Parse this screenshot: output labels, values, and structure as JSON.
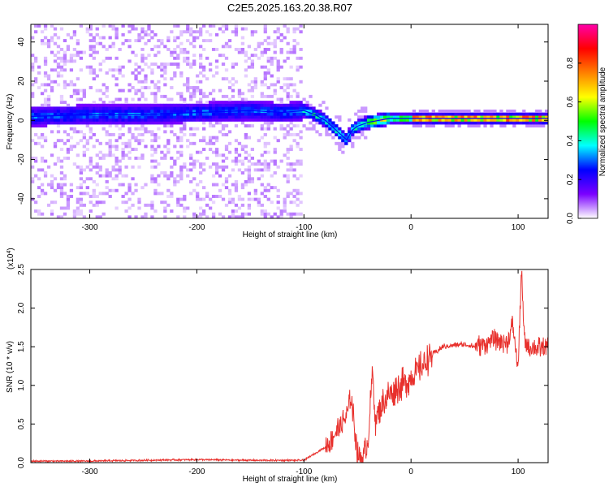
{
  "figure_title": "C2E5.2025.163.20.38.R07",
  "colorbar": {
    "label": "Normalized spectral amplitude",
    "ticks": [
      "0.0",
      "0.2",
      "0.4",
      "0.6",
      "0.8"
    ],
    "tick_values": [
      0.0,
      0.2,
      0.4,
      0.6,
      0.8
    ],
    "range": [
      0,
      1
    ],
    "colormap": [
      "#ffffff",
      "#7a00ff",
      "#0000ff",
      "#00ffff",
      "#00ff00",
      "#ffff00",
      "#ff8000",
      "#ff0000",
      "#ff00aa"
    ]
  },
  "chart_data": [
    {
      "type": "heatmap",
      "title": "",
      "xlabel": "Height of straight line (km)",
      "ylabel": "Frequency (Hz)",
      "xlim": [
        -355,
        128
      ],
      "ylim": [
        -50,
        49
      ],
      "xticks": [
        -300,
        -200,
        -100,
        0,
        100
      ],
      "xtick_labels": [
        "-300",
        "-200",
        "-100",
        "0",
        "100"
      ],
      "yticks": [
        -40,
        -20,
        0,
        20,
        40
      ],
      "ytick_labels": [
        "-40",
        "-20",
        "0",
        "20",
        "40"
      ],
      "ridge": {
        "x": [
          -355,
          -300,
          -250,
          -200,
          -150,
          -120,
          -100,
          -90,
          -80,
          -70,
          -60,
          -55,
          -50,
          -40,
          -30,
          -20,
          -10,
          0,
          20,
          60,
          100,
          128
        ],
        "y": [
          2,
          3,
          3,
          4,
          5,
          4,
          5,
          3,
          0,
          -5,
          -10,
          -5,
          -3,
          -1,
          0,
          1,
          1,
          1,
          1,
          1,
          1,
          1
        ]
      },
      "notes": "Scattered weak spectral energy left of about -100 km; ridge intensity rises to near 1.0 right of 0 km."
    },
    {
      "type": "line",
      "title": "",
      "xlabel": "Height of straight line (km)",
      "ylabel": "SNR (10 * v/v)",
      "y_multiplier_label": "(x10^4)",
      "xlim": [
        -355,
        128
      ],
      "ylim": [
        0,
        2.5
      ],
      "xticks": [
        -300,
        -200,
        -100,
        0,
        100
      ],
      "xtick_labels": [
        "-300",
        "-200",
        "-100",
        "0",
        "100"
      ],
      "yticks": [
        0.0,
        0.5,
        1.0,
        1.5,
        2.0,
        2.5
      ],
      "ytick_labels": [
        "0.0",
        "0.5",
        "1.0",
        "1.5",
        "2.0",
        "2.5"
      ],
      "color": "#e8302c",
      "series": [
        {
          "x": [
            -355,
            -300,
            -250,
            -200,
            -150,
            -100,
            -80,
            -70,
            -60,
            -56,
            -53,
            -50,
            -45,
            -40,
            -36,
            -33,
            -30,
            -20,
            -10,
            0,
            10,
            20,
            30,
            40,
            50,
            60,
            70,
            80,
            90,
            95,
            100,
            103,
            106,
            110,
            128
          ],
          "y": [
            0.02,
            0.02,
            0.03,
            0.04,
            0.03,
            0.03,
            0.2,
            0.4,
            0.6,
            0.85,
            0.5,
            0.1,
            0.05,
            0.3,
            1.2,
            0.5,
            0.7,
            0.9,
            1.0,
            1.1,
            1.25,
            1.4,
            1.5,
            1.52,
            1.53,
            1.5,
            1.55,
            1.6,
            1.55,
            1.8,
            1.2,
            2.5,
            1.55,
            1.5,
            1.47
          ]
        }
      ]
    }
  ]
}
